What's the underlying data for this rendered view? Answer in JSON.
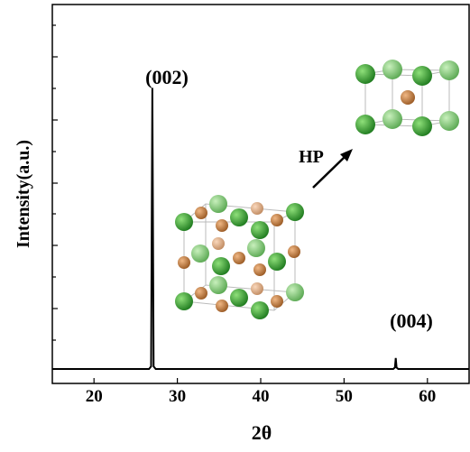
{
  "chart_data": {
    "type": "line",
    "xlabel": "2θ",
    "ylabel": "Intensity(a.u.)",
    "annotations": [
      "(002)",
      "(004)",
      "HP"
    ],
    "xlim": [
      15,
      65
    ],
    "xticks": [
      20,
      30,
      40,
      50,
      60
    ],
    "ylim": [
      0,
      100
    ],
    "series": [
      {
        "color": "#000000",
        "x": [
          15,
          26.6,
          26.85,
          27.0,
          27.15,
          27.4,
          55.9,
          56.1,
          56.2,
          56.3,
          56.5,
          65
        ],
        "values": [
          3.8,
          3.8,
          4.5,
          78,
          4.5,
          3.8,
          3.8,
          4.2,
          6.7,
          4.2,
          3.8,
          3.8
        ]
      }
    ]
  }
}
